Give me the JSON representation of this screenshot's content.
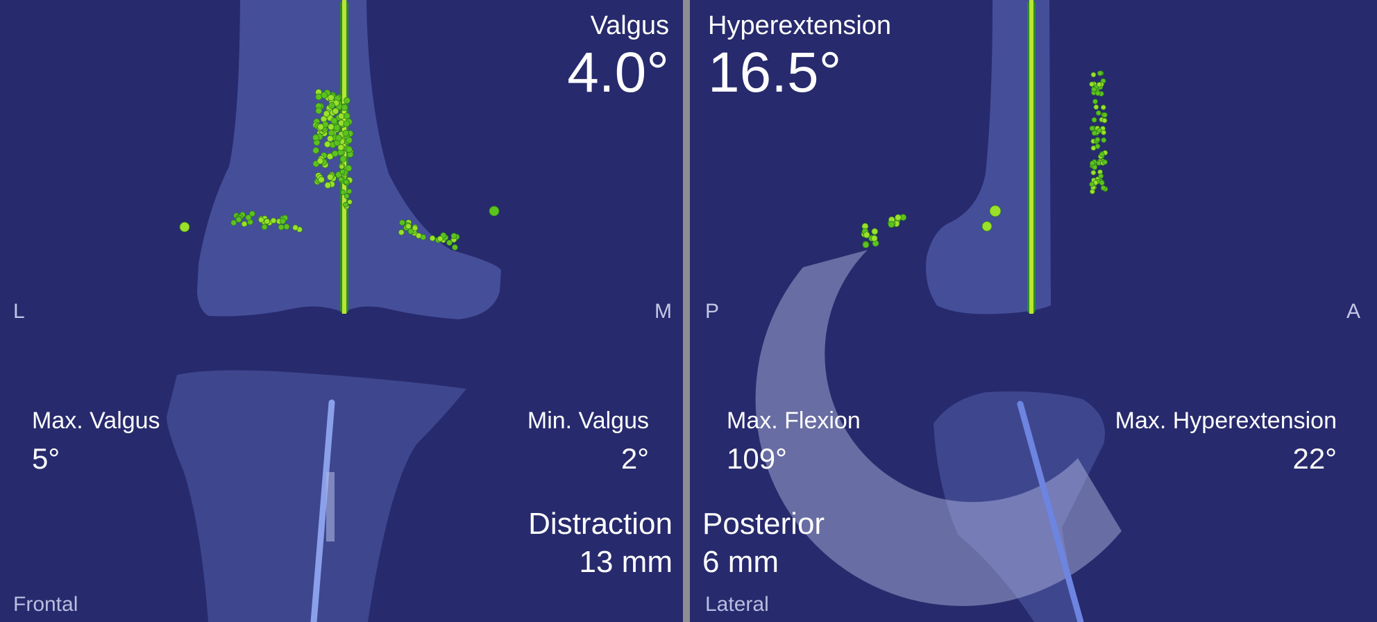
{
  "colors": {
    "background": "#272a6c",
    "bone": "#5a68b8",
    "marker": "#7fd61a",
    "axis": "#9bd82a",
    "divider": "#8d8d92"
  },
  "frontal": {
    "view_label": "Frontal",
    "orient_left": "L",
    "orient_right": "M",
    "angle_label": "Valgus",
    "angle_value": "4.0°",
    "max_label": "Max. Valgus",
    "max_value": "5°",
    "min_label": "Min. Valgus",
    "min_value": "2°",
    "translation_label": "Distraction",
    "translation_value": "13 mm"
  },
  "lateral": {
    "view_label": "Lateral",
    "orient_left": "P",
    "orient_right": "A",
    "angle_label": "Hyperextension",
    "angle_value": "16.5°",
    "max_label": "Max. Flexion",
    "max_value": "109°",
    "min_label": "Max. Hyperextension",
    "min_value": "22°",
    "translation_label": "Posterior",
    "translation_value": "6 mm"
  }
}
